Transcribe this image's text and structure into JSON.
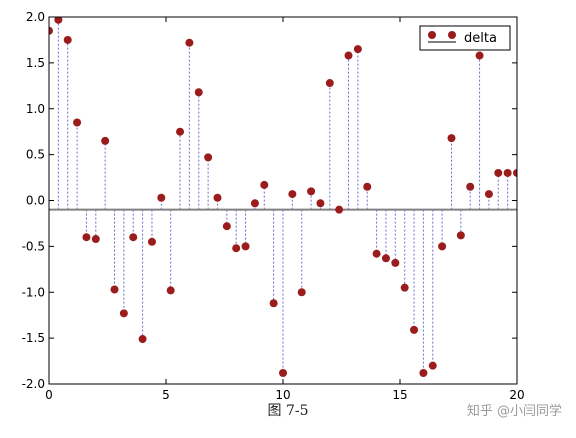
{
  "figure": {
    "caption": "图 7-5",
    "watermark": "知乎 @小闫同学"
  },
  "chart_data": {
    "type": "scatter",
    "style": "stem",
    "legend": {
      "entries": [
        "delta"
      ],
      "placement": "top-right"
    },
    "baseline": -0.1,
    "xlim": [
      0,
      20
    ],
    "ylim": [
      -2.0,
      2.0
    ],
    "xticks": [
      0,
      5,
      10,
      15,
      20
    ],
    "yticks": [
      -2.0,
      -1.5,
      -1.0,
      -0.5,
      0.0,
      0.5,
      1.0,
      1.5,
      2.0
    ],
    "grid": false,
    "marker_color": "#9b1c1c",
    "stem_color": "#6b6bd6",
    "baseline_color": "#808080",
    "series": [
      {
        "name": "delta",
        "x": [
          0.0,
          0.4,
          0.8,
          1.2,
          1.6,
          2.0,
          2.4,
          2.8,
          3.2,
          3.6,
          4.0,
          4.4,
          4.8,
          5.2,
          5.6,
          6.0,
          6.4,
          6.8,
          7.2,
          7.6,
          8.0,
          8.4,
          8.8,
          9.2,
          9.6,
          10.0,
          10.4,
          10.8,
          11.2,
          11.6,
          12.0,
          12.4,
          12.8,
          13.2,
          13.6,
          14.0,
          14.4,
          14.8,
          15.2,
          15.6,
          16.0,
          16.4,
          16.8,
          17.2,
          17.6,
          18.0,
          18.4,
          18.8,
          19.2,
          19.6,
          20.0
        ],
        "y": [
          1.85,
          1.97,
          1.75,
          0.85,
          -0.4,
          -0.42,
          0.65,
          -0.97,
          -1.23,
          -0.4,
          -1.51,
          -0.45,
          0.03,
          -0.98,
          0.75,
          1.72,
          1.18,
          0.47,
          0.03,
          -0.28,
          -0.52,
          -0.5,
          -0.03,
          0.17,
          -1.12,
          -1.88,
          0.07,
          -1.0,
          0.1,
          -0.03,
          1.28,
          -0.1,
          1.58,
          1.65,
          0.15,
          -0.58,
          -0.63,
          -0.68,
          -0.95,
          -1.41,
          -1.88,
          -1.8,
          -0.5,
          0.68,
          -0.38,
          0.15,
          1.58,
          0.07,
          0.3,
          0.3,
          0.3
        ]
      }
    ]
  }
}
